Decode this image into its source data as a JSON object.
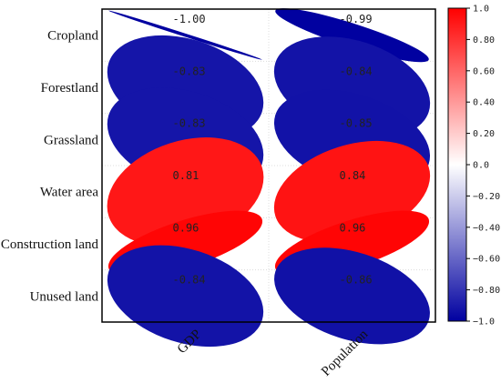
{
  "chart_data": {
    "type": "correlation-ellipse-matrix",
    "rows": [
      "Cropland",
      "Forestland",
      "Grassland",
      "Water area",
      "Construction land",
      "Unused land"
    ],
    "columns": [
      "GDP",
      "Population"
    ],
    "values": [
      [
        -1.0,
        -0.99
      ],
      [
        -0.83,
        -0.84
      ],
      [
        -0.83,
        -0.85
      ],
      [
        0.81,
        0.84
      ],
      [
        0.96,
        0.96
      ],
      [
        -0.84,
        -0.86
      ]
    ],
    "value_labels": [
      [
        "-1.00",
        "-0.99"
      ],
      [
        "-0.83",
        "-0.84"
      ],
      [
        "-0.83",
        "-0.85"
      ],
      [
        "0.81",
        "0.84"
      ],
      [
        "0.96",
        "0.96"
      ],
      [
        "-0.84",
        "-0.86"
      ]
    ],
    "colorbar": {
      "range": [
        -1.0,
        1.0
      ],
      "ticks": [
        1.0,
        0.8,
        0.6,
        0.4,
        0.2,
        0.0,
        -0.2,
        -0.4,
        -0.6,
        -0.8,
        -1.0
      ],
      "tick_labels": [
        "1.0",
        "0.80",
        "0.60",
        "0.40",
        "0.20",
        "0.0",
        "−0.20",
        "−0.40",
        "−0.60",
        "−0.80",
        "−1.0"
      ],
      "colors": {
        "high": "#ff0000",
        "mid": "#ffffff",
        "low": "#0000a0"
      }
    },
    "grid": true
  }
}
